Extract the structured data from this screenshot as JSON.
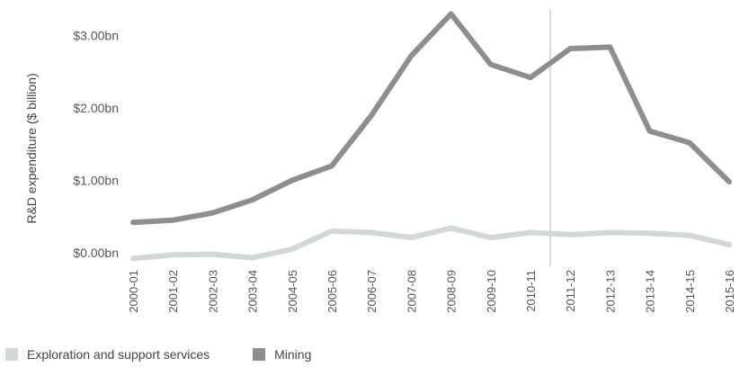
{
  "chart_data": {
    "type": "line",
    "ylabel": "R&D expenditure ($ billion)",
    "categories": [
      "2000-01",
      "2001-02",
      "2002-03",
      "2003-04",
      "2004-05",
      "2005-06",
      "2006-07",
      "2007-08",
      "2008-09",
      "2009-10",
      "2010-11",
      "2011-12",
      "2012-13",
      "2013-14",
      "2014-15",
      "2015-16"
    ],
    "y_ticks": [
      {
        "value": 0,
        "label": "$0.00bn"
      },
      {
        "value": 1,
        "label": "$1.00bn"
      },
      {
        "value": 2,
        "label": "$2.00bn"
      },
      {
        "value": 3,
        "label": "$3.00bn"
      }
    ],
    "ylim": [
      0,
      3.45
    ],
    "grid": false,
    "vertical_marker_after_category": "2010-11",
    "legend_position": "bottom-left",
    "series": [
      {
        "name": "Exploration and support services",
        "color": "#d3d7d8",
        "values": [
          -0.08,
          -0.03,
          -0.02,
          -0.07,
          0.05,
          0.3,
          0.28,
          0.21,
          0.34,
          0.21,
          0.28,
          0.25,
          0.28,
          0.27,
          0.24,
          0.11
        ]
      },
      {
        "name": "Mining",
        "color": "#8e8e8e",
        "values": [
          0.42,
          0.45,
          0.55,
          0.73,
          1.0,
          1.2,
          1.9,
          2.72,
          3.3,
          2.6,
          2.42,
          2.82,
          2.84,
          1.68,
          1.52,
          0.98
        ]
      }
    ]
  }
}
